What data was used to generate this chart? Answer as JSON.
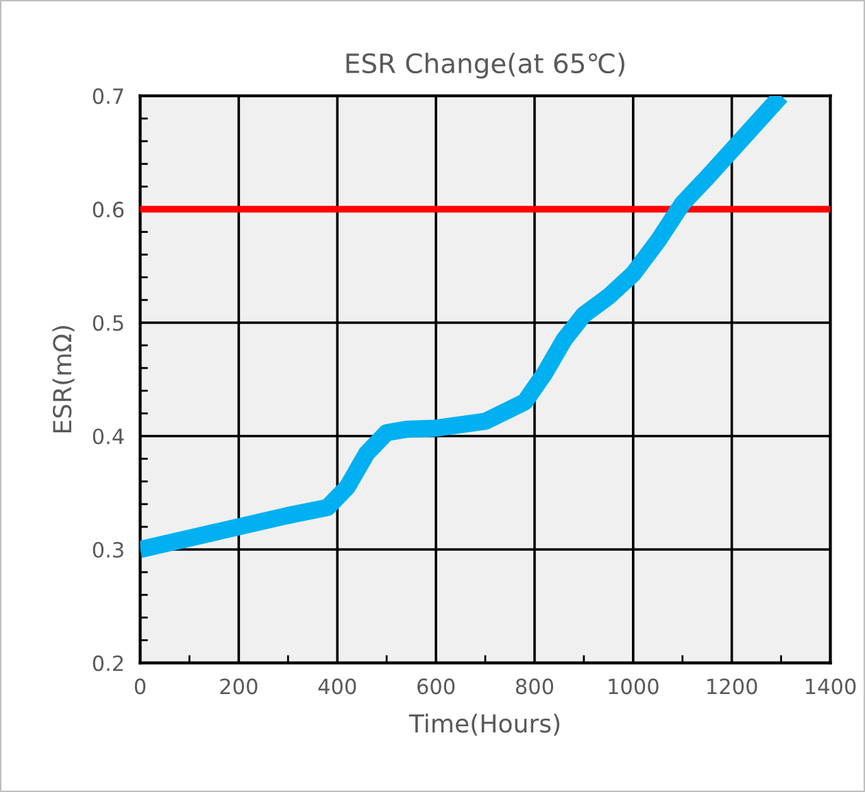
{
  "chart_data": {
    "type": "line",
    "title": "ESR Change(at 65℃)",
    "xlabel": "Time(Hours)",
    "ylabel": "ESR(mΩ)",
    "series": [
      {
        "color": "#00b0f0",
        "x": [
          0,
          100,
          200,
          300,
          380,
          420,
          460,
          500,
          540,
          600,
          700,
          780,
          820,
          860,
          900,
          950,
          1000,
          1050,
          1100,
          1150,
          1200,
          1250,
          1300
        ],
        "values": [
          0.3,
          0.31,
          0.32,
          0.33,
          0.337,
          0.355,
          0.385,
          0.403,
          0.406,
          0.407,
          0.413,
          0.43,
          0.455,
          0.485,
          0.507,
          0.523,
          0.543,
          0.572,
          0.605,
          0.628,
          0.652,
          0.676,
          0.7
        ]
      }
    ],
    "xlim": [
      0,
      1400
    ],
    "xticks": [
      0,
      200,
      400,
      600,
      800,
      1000,
      1200,
      1400
    ],
    "ylim": [
      0.2,
      0.7
    ],
    "yticks": [
      0.2,
      0.3,
      0.4,
      0.5,
      0.6,
      0.7
    ],
    "ref_lines": [
      {
        "axis": "y",
        "value": 0.6,
        "color": "#ff0000"
      }
    ],
    "grid": true,
    "legend": false,
    "marker": "none",
    "line_style": "solid"
  }
}
